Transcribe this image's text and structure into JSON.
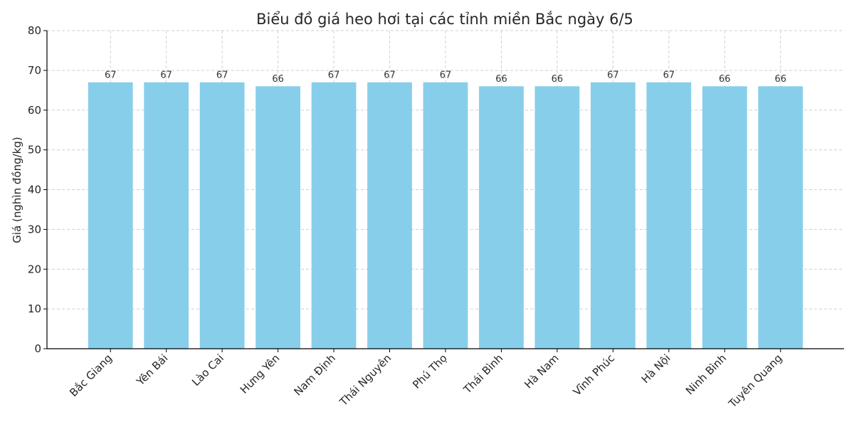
{
  "chart_data": {
    "type": "bar",
    "title": "Biểu đồ giá heo hơi tại các tỉnh miền Bắc ngày 6/5",
    "xlabel": "",
    "ylabel": "Giá (nghìn đồng/kg)",
    "categories": [
      "Bắc Giang",
      "Yên Bái",
      "Lào Cai",
      "Hưng Yên",
      "Nam Định",
      "Thái Nguyên",
      "Phú Thọ",
      "Thái Bình",
      "Hà Nam",
      "Vĩnh Phúc",
      "Hà Nội",
      "Ninh Bình",
      "Tuyên Quang"
    ],
    "values": [
      67,
      67,
      67,
      66,
      67,
      67,
      67,
      66,
      66,
      67,
      67,
      66,
      66
    ],
    "data_labels": [
      "67",
      "67",
      "67",
      "66",
      "67",
      "67",
      "67",
      "66",
      "66",
      "67",
      "67",
      "66",
      "66"
    ],
    "ylim": [
      0,
      80
    ],
    "yticks": [
      0,
      10,
      20,
      30,
      40,
      50,
      60,
      70,
      80
    ],
    "ytick_labels": [
      "0",
      "10",
      "20",
      "30",
      "40",
      "50",
      "60",
      "70",
      "80"
    ],
    "grid": true,
    "legend": "none",
    "colors": {
      "bar": "#87ceeb",
      "grid": "#cfcfcf",
      "axis": "#000000",
      "text": "#262626"
    }
  }
}
